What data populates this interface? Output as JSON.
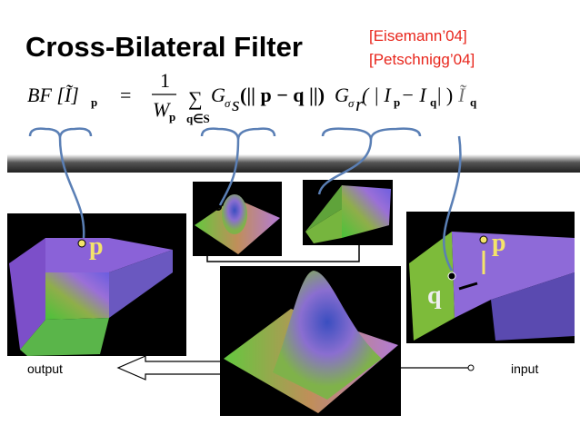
{
  "title": "Cross-Bilateral Filter",
  "references": [
    "[Eisemann’04]",
    "[Petschnigg’04]"
  ],
  "formula": {
    "lhs": "BF [Ĩ]",
    "lhs_sub": "p",
    "equals": "=",
    "numerator": "1",
    "denominator": "W",
    "denominator_sub": "p",
    "sum": "∑",
    "sum_sub": "q∈S",
    "spatial_kernel": "G",
    "spatial_sigma": "σ",
    "spatial_sigma_sub": "s",
    "spatial_arg": "(|| p − q ||)",
    "range_kernel": "G",
    "range_sigma": "σ",
    "range_sigma_sub": "r",
    "range_arg_open": "( | I",
    "range_arg_p": "p",
    "range_arg_minus": " − I",
    "range_arg_q": "q",
    "range_arg_close": " | )",
    "guide": "Ĩ",
    "guide_sub": "q"
  },
  "image_labels": {
    "output_p": "p",
    "input_p": "p",
    "input_q": "q"
  },
  "output_label": "output",
  "input_label": "input"
}
